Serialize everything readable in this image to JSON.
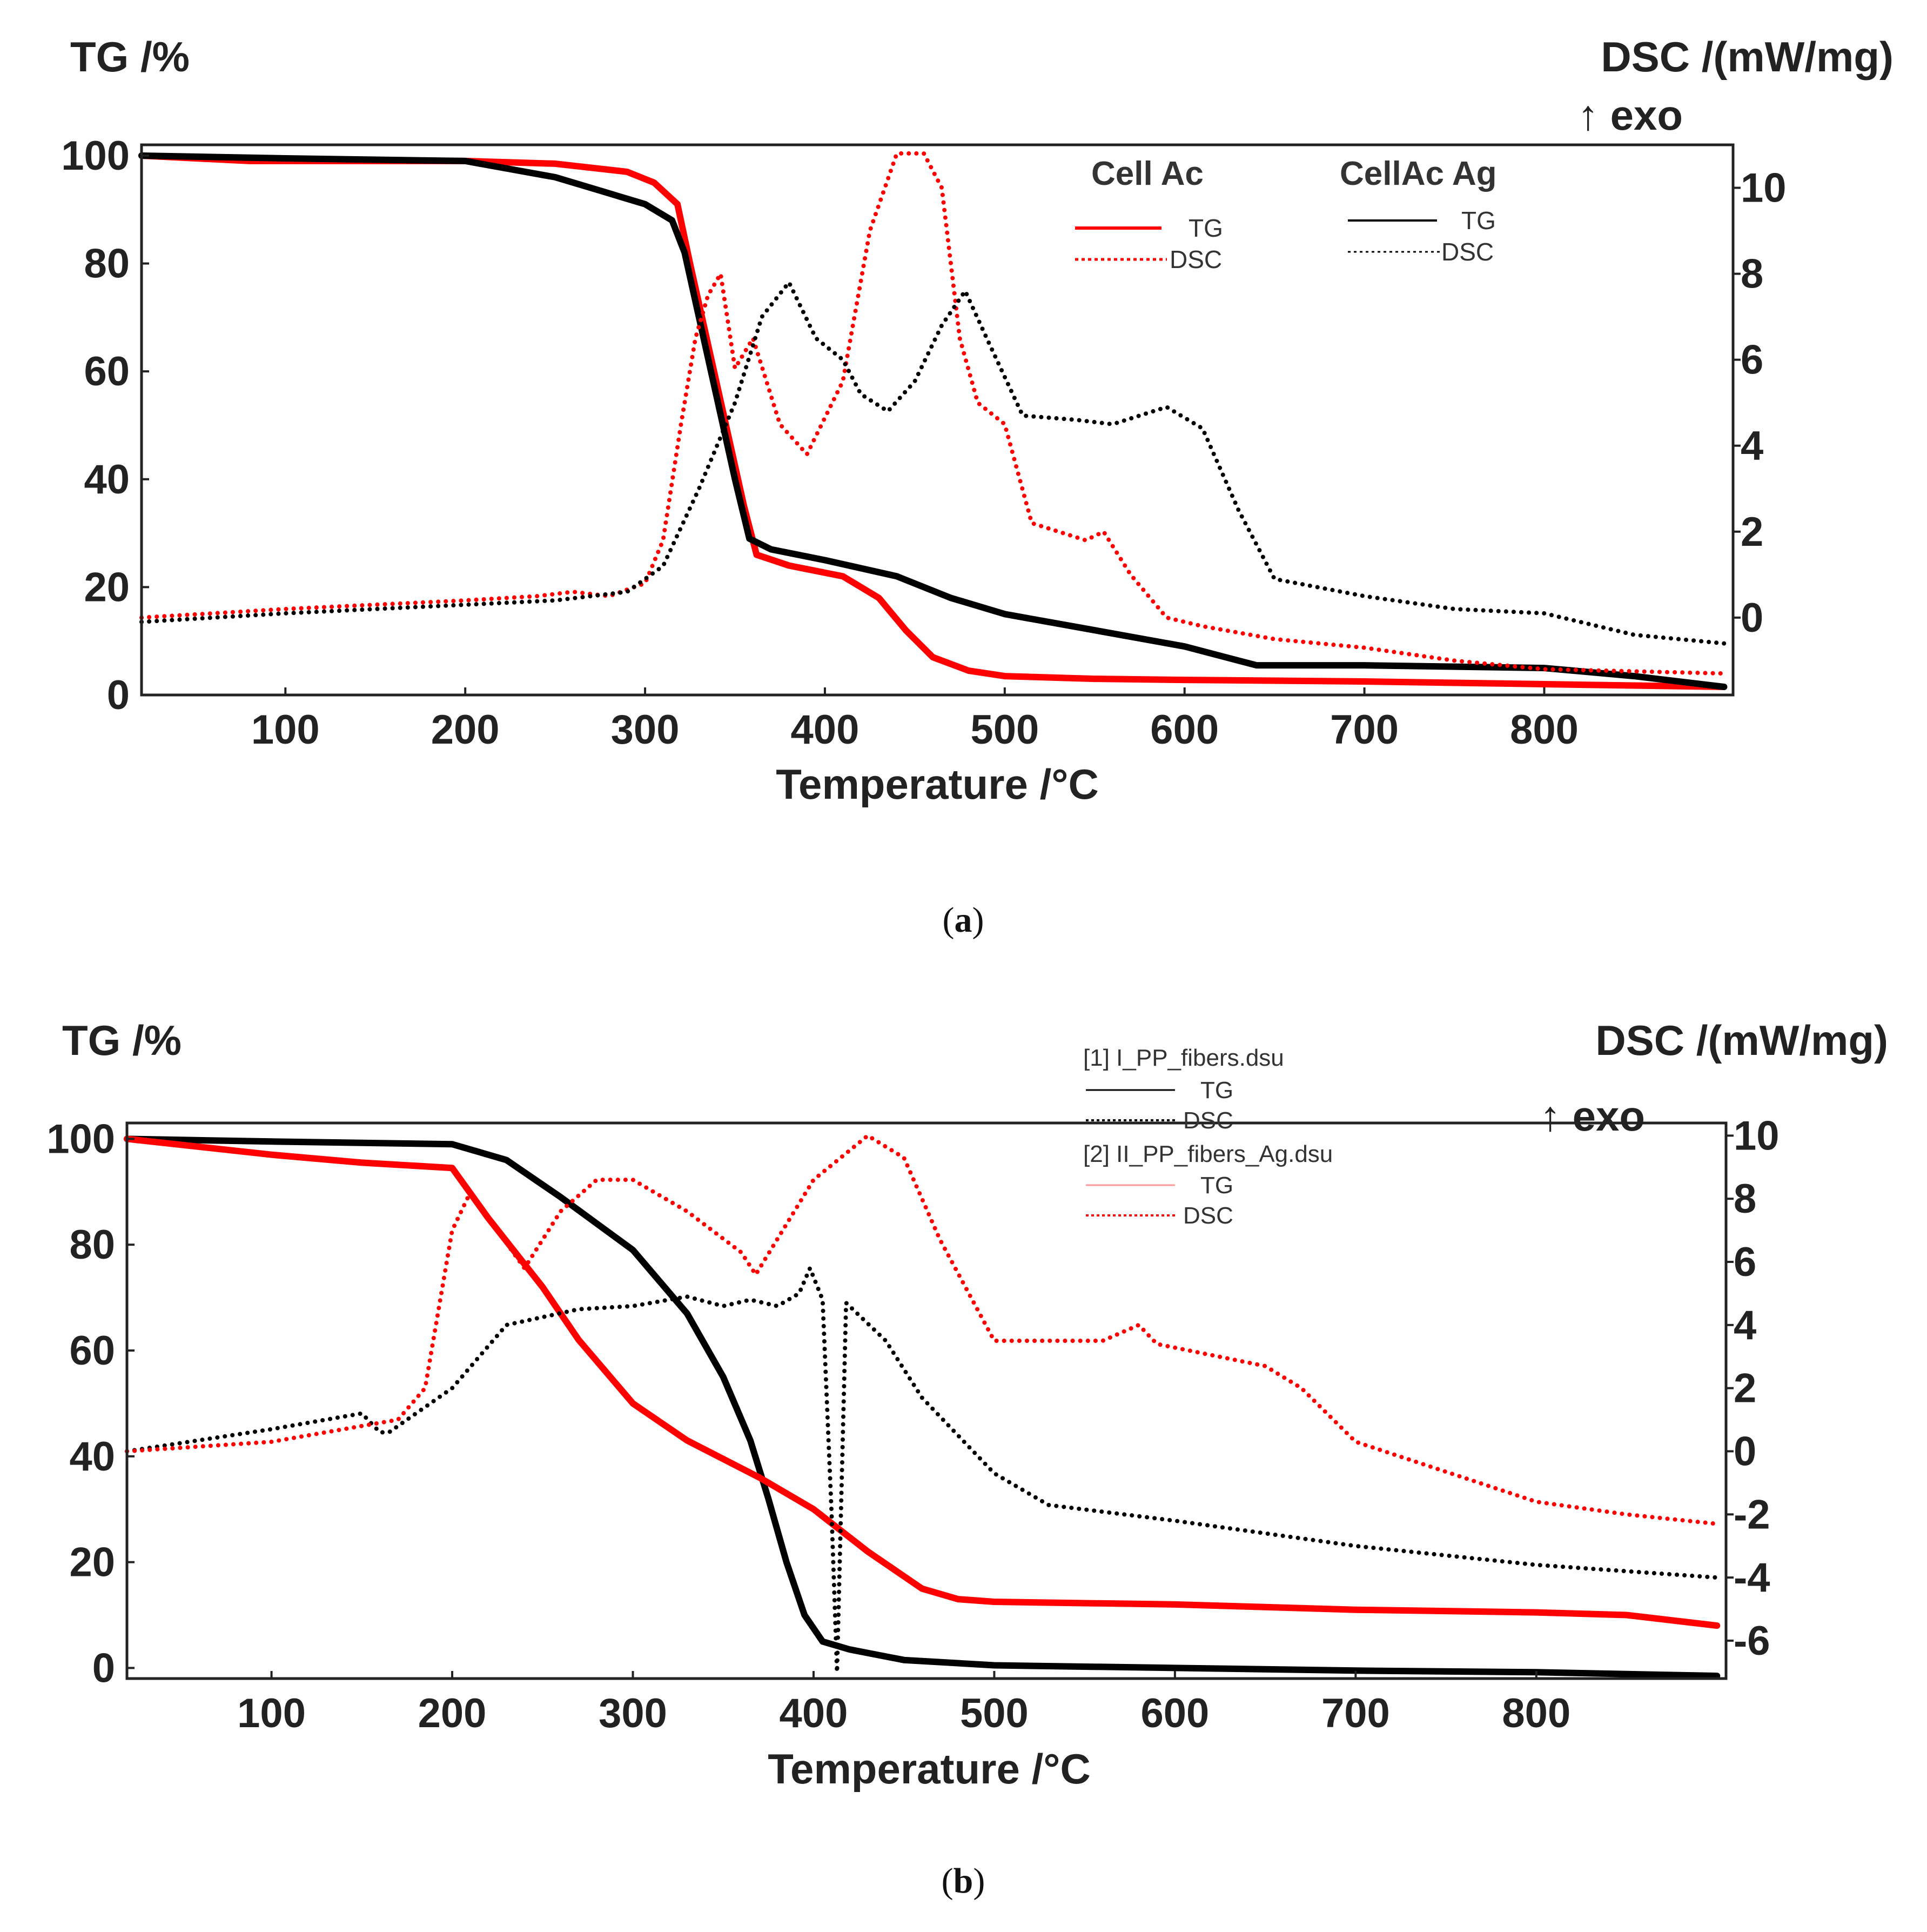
{
  "chart_data": [
    {
      "type": "line",
      "panel": "a",
      "caption_letter": "a",
      "xlabel": "Temperature /°C",
      "ylabel": "TG /%",
      "y2label": "DSC /(mW/mg)",
      "y2note": "↑ exo",
      "xlim": [
        20,
        905
      ],
      "ylim": [
        0,
        102
      ],
      "y2lim": [
        -1.8,
        11.0
      ],
      "xticks": [
        100,
        200,
        300,
        400,
        500,
        600,
        700,
        800
      ],
      "yticks": [
        0,
        20,
        40,
        60,
        80,
        100
      ],
      "y2ticks": [
        0,
        2,
        4,
        6,
        8,
        10
      ],
      "legend": {
        "groups": [
          {
            "title": "Cell Ac",
            "entries": [
              {
                "label": "TG",
                "color": "#ff0000",
                "style": "solid"
              },
              {
                "label": "DSC",
                "color": "#ff0000",
                "style": "dotted"
              }
            ]
          },
          {
            "title": "CellAc Ag",
            "entries": [
              {
                "label": "TG",
                "color": "#000000",
                "style": "solid"
              },
              {
                "label": "DSC",
                "color": "#000000",
                "style": "dotted"
              }
            ]
          }
        ]
      },
      "series": [
        {
          "name": "Cell Ac TG",
          "axis": "left",
          "color": "#ff0000",
          "style": "solid",
          "x": [
            20,
            80,
            200,
            250,
            290,
            305,
            318,
            325,
            335,
            345,
            355,
            362,
            380,
            410,
            430,
            445,
            460,
            480,
            500,
            550,
            600,
            700,
            800,
            900
          ],
          "y": [
            100,
            99,
            99,
            98.5,
            97,
            95,
            91,
            80,
            65,
            50,
            35,
            26,
            24,
            22,
            18,
            12,
            7,
            4.5,
            3.5,
            3,
            2.8,
            2.5,
            2,
            1.5
          ]
        },
        {
          "name": "CellAc Ag TG",
          "axis": "left",
          "color": "#000000",
          "style": "solid",
          "x": [
            20,
            100,
            200,
            250,
            280,
            300,
            315,
            322,
            330,
            340,
            350,
            358,
            370,
            400,
            440,
            470,
            500,
            550,
            600,
            640,
            700,
            800,
            850,
            900
          ],
          "y": [
            100,
            99.5,
            99,
            96,
            93,
            91,
            88,
            82,
            70,
            55,
            40,
            29,
            27,
            25,
            22,
            18,
            15,
            12,
            9,
            5.5,
            5.5,
            5,
            3.5,
            1.5
          ]
        },
        {
          "name": "Cell Ac DSC",
          "axis": "right",
          "color": "#ff0000",
          "style": "dotted",
          "x": [
            20,
            100,
            200,
            240,
            260,
            280,
            300,
            310,
            320,
            328,
            335,
            342,
            350,
            360,
            375,
            390,
            410,
            425,
            440,
            455,
            465,
            475,
            485,
            500,
            515,
            530,
            545,
            555,
            570,
            590,
            610,
            650,
            700,
            750,
            800,
            900
          ],
          "y": [
            0,
            0.2,
            0.4,
            0.5,
            0.6,
            0.5,
            0.8,
            1.8,
            4.5,
            6.5,
            7.5,
            8,
            5.8,
            6.5,
            4.5,
            3.8,
            5.5,
            9,
            10.8,
            10.8,
            10,
            6.5,
            5.0,
            4.5,
            2.2,
            2.0,
            1.8,
            2.0,
            1.0,
            0.0,
            -0.2,
            -0.5,
            -0.7,
            -1.0,
            -1.2,
            -1.3
          ]
        },
        {
          "name": "CellAc Ag DSC",
          "axis": "right",
          "color": "#000000",
          "style": "dotted",
          "x": [
            20,
            100,
            200,
            250,
            290,
            310,
            330,
            350,
            365,
            380,
            395,
            410,
            420,
            435,
            450,
            465,
            478,
            490,
            510,
            540,
            560,
            590,
            610,
            630,
            650,
            700,
            750,
            800,
            850,
            900
          ],
          "y": [
            -0.1,
            0.1,
            0.3,
            0.4,
            0.6,
            1.2,
            3.0,
            5.0,
            7.0,
            7.8,
            6.5,
            6.0,
            5.2,
            4.8,
            5.5,
            6.8,
            7.6,
            6.5,
            4.7,
            4.6,
            4.5,
            4.9,
            4.4,
            2.5,
            0.9,
            0.5,
            0.2,
            0.1,
            -0.4,
            -0.6
          ]
        }
      ]
    },
    {
      "type": "line",
      "panel": "b",
      "caption_letter": "b",
      "xlabel": "Temperature /°C",
      "ylabel": "TG /%",
      "y2label": "DSC /(mW/mg)",
      "y2note": "↑ exo",
      "xlim": [
        20,
        905
      ],
      "ylim": [
        -2,
        103
      ],
      "y2lim": [
        -7.2,
        10.4
      ],
      "xticks": [
        100,
        200,
        300,
        400,
        500,
        600,
        700,
        800
      ],
      "yticks": [
        0,
        20,
        40,
        60,
        80,
        100
      ],
      "y2ticks": [
        -6,
        -4,
        -2,
        0,
        2,
        4,
        6,
        8,
        10
      ],
      "legend": {
        "groups": [
          {
            "title": "[1] I_PP_fibers.dsu",
            "entries": [
              {
                "label": "TG",
                "color": "#000000",
                "style": "solid"
              },
              {
                "label": "DSC",
                "color": "#000000",
                "style": "dotted"
              }
            ]
          },
          {
            "title": "[2] II_PP_fibers_Ag.dsu",
            "entries": [
              {
                "label": "TG",
                "color": "#ff0000",
                "style": "solid"
              },
              {
                "label": "DSC",
                "color": "#ff0000",
                "style": "dotted"
              }
            ]
          }
        ]
      },
      "series": [
        {
          "name": "I_PP_fibers TG",
          "axis": "left",
          "color": "#000000",
          "style": "solid",
          "x": [
            20,
            100,
            200,
            230,
            260,
            300,
            330,
            350,
            365,
            375,
            385,
            395,
            405,
            420,
            450,
            500,
            600,
            700,
            800,
            900
          ],
          "y": [
            100,
            99.5,
            99,
            96,
            89,
            79,
            67,
            55,
            43,
            32,
            20,
            10,
            5,
            3.5,
            1.5,
            0.5,
            0,
            -0.5,
            -0.8,
            -1.5
          ]
        },
        {
          "name": "II_PP_fibers_Ag TG",
          "axis": "left",
          "color": "#ff0000",
          "style": "solid",
          "x": [
            20,
            100,
            150,
            200,
            220,
            250,
            270,
            300,
            330,
            370,
            400,
            430,
            460,
            480,
            500,
            600,
            700,
            800,
            850,
            900
          ],
          "y": [
            100,
            97,
            95.5,
            94.5,
            85,
            72,
            62,
            50,
            43,
            36,
            30,
            22,
            15,
            13,
            12.5,
            12,
            11,
            10.5,
            10,
            8
          ]
        },
        {
          "name": "I_PP_fibers DSC",
          "axis": "right",
          "color": "#000000",
          "style": "dotted",
          "x": [
            20,
            100,
            150,
            160,
            165,
            200,
            230,
            270,
            300,
            330,
            350,
            365,
            380,
            392,
            398,
            405,
            410,
            413,
            418,
            440,
            460,
            500,
            530,
            600,
            700,
            800,
            900
          ],
          "y": [
            0,
            0.7,
            1.2,
            0.6,
            0.6,
            2.0,
            4.0,
            4.5,
            4.6,
            4.9,
            4.6,
            4.8,
            4.6,
            5.0,
            5.8,
            4.8,
            -2.0,
            -7.0,
            4.7,
            3.5,
            1.7,
            -0.7,
            -1.7,
            -2.2,
            -3.0,
            -3.6,
            -4.0
          ]
        },
        {
          "name": "II_PP_fibers_Ag DSC",
          "axis": "right",
          "color": "#ff0000",
          "style": "dotted",
          "x": [
            20,
            100,
            150,
            160,
            170,
            185,
            200,
            210,
            240,
            260,
            280,
            300,
            330,
            360,
            368,
            400,
            430,
            450,
            470,
            500,
            560,
            580,
            590,
            650,
            670,
            700,
            800,
            850,
            900
          ],
          "y": [
            0,
            0.3,
            0.8,
            0.9,
            1.0,
            2.0,
            7.0,
            8.2,
            5.8,
            7.6,
            8.6,
            8.6,
            7.6,
            6.3,
            5.6,
            8.6,
            10.0,
            9.3,
            6.7,
            3.5,
            3.5,
            4.0,
            3.4,
            2.7,
            2.0,
            0.3,
            -1.6,
            -2.0,
            -2.3
          ]
        }
      ]
    }
  ]
}
